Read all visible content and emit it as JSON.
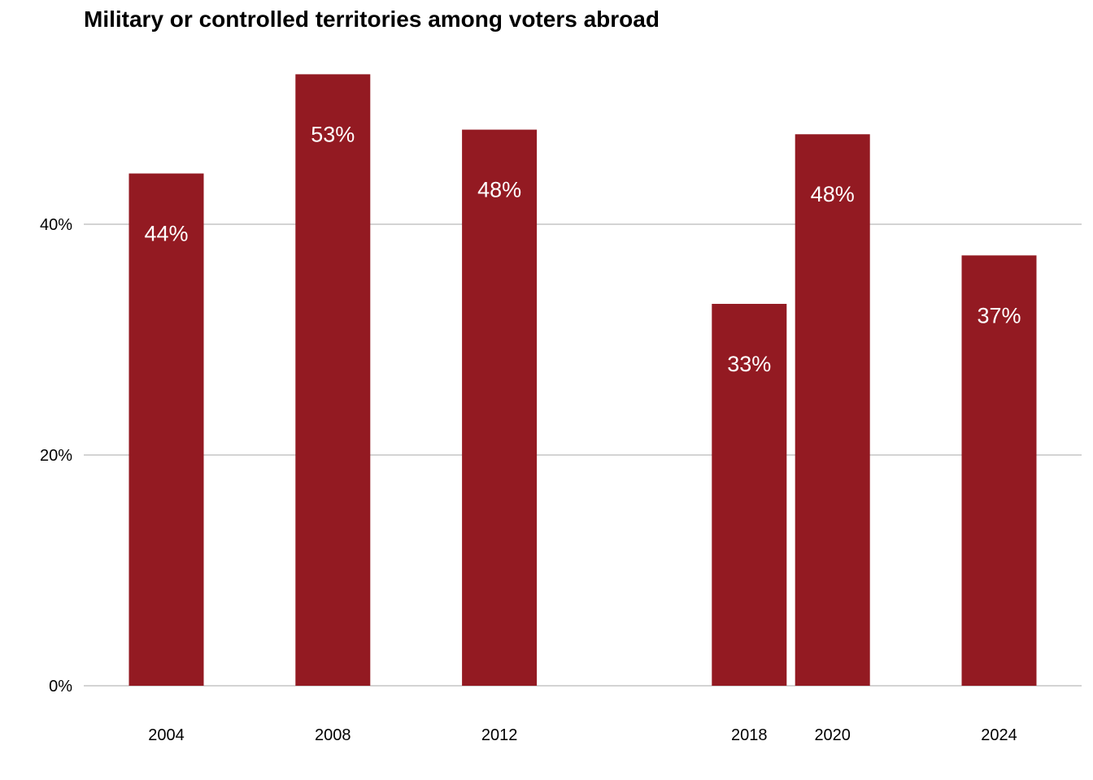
{
  "chart_data": {
    "type": "bar",
    "title": "Military or controlled territories among voters abroad",
    "xlabel": "",
    "ylabel": "",
    "x": [
      2004,
      2008,
      2012,
      2018,
      2020,
      2024
    ],
    "categories": [
      "2004",
      "2008",
      "2012",
      "2018",
      "2020",
      "2024"
    ],
    "values": [
      44.4,
      53.0,
      48.2,
      33.1,
      47.8,
      37.3
    ],
    "data_labels": [
      "44%",
      "53%",
      "48%",
      "33%",
      "48%",
      "37%"
    ],
    "yticks": [
      0,
      20,
      40
    ],
    "ytick_labels": [
      "0%",
      "20%",
      "40%"
    ],
    "ylim": [
      0,
      55.7
    ],
    "xlim": [
      2002,
      2026
    ],
    "grid": true,
    "legend": "none",
    "colors": {
      "bar": "#931A22",
      "data_label": "#FFFFFF",
      "grid": "#D3D3D3",
      "text": "#000000"
    }
  }
}
